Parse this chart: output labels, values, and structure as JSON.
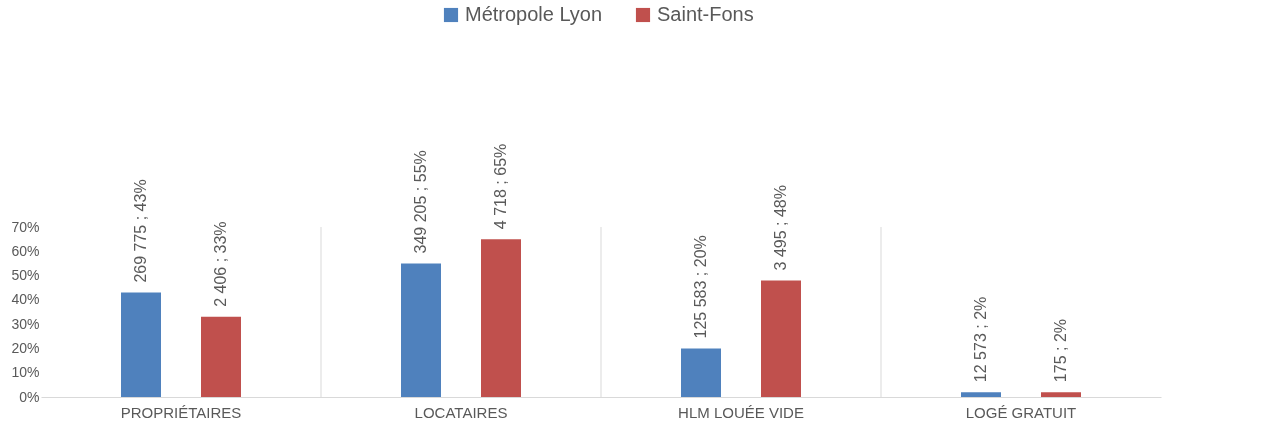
{
  "chart_data": {
    "type": "bar",
    "categories": [
      "PROPRIÉTAIRES",
      "LOCATAIRES",
      "HLM LOUÉE VIDE",
      "LOGÉ GRATUIT"
    ],
    "series": [
      {
        "name": "Métropole Lyon",
        "color": "#4f81bd",
        "values": [
          43,
          55,
          20,
          2
        ],
        "value_labels": [
          "269 775 ; 43%",
          "349 205 ; 55%",
          "125 583 ; 20%",
          "12 573 ; 2%"
        ]
      },
      {
        "name": "Saint-Fons",
        "color": "#c0504d",
        "values": [
          33,
          65,
          48,
          2
        ],
        "value_labels": [
          "2 406 ; 33%",
          "4 718 ; 65%",
          "3 495 ; 48%",
          "175 ; 2%"
        ]
      }
    ],
    "ylim": [
      0,
      70
    ],
    "yticks": [
      {
        "value": 0,
        "label": "0%"
      },
      {
        "value": 10,
        "label": "10%"
      },
      {
        "value": 20,
        "label": "20%"
      },
      {
        "value": 30,
        "label": "30%"
      },
      {
        "value": 40,
        "label": "40%"
      },
      {
        "value": 50,
        "label": "50%"
      },
      {
        "value": 60,
        "label": "60%"
      },
      {
        "value": 70,
        "label": "70%"
      }
    ],
    "grid": "x",
    "legend": "top"
  }
}
